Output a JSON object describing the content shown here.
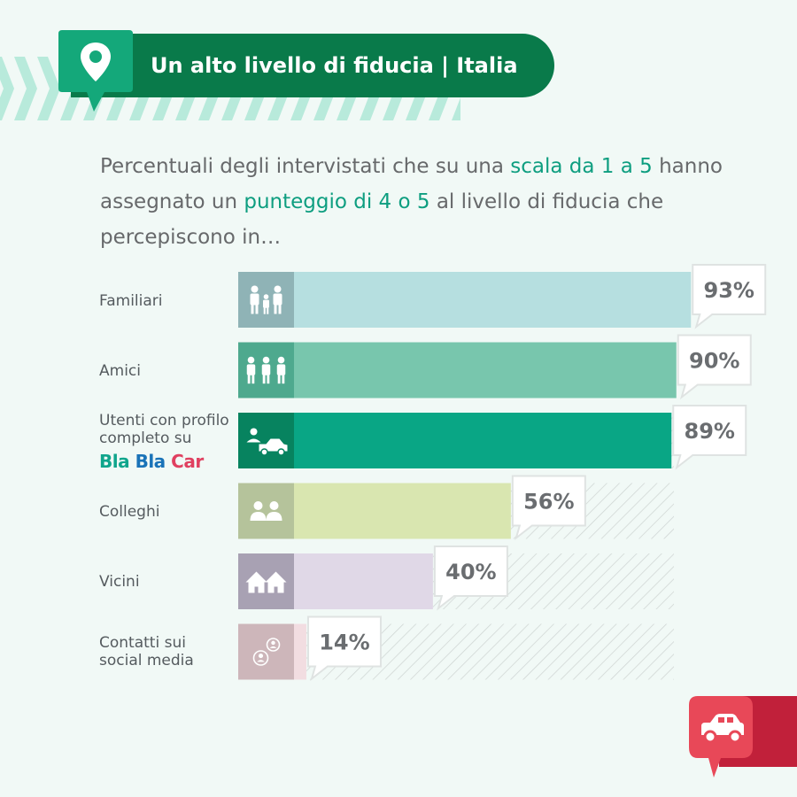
{
  "header": {
    "title": "Un alto livello di fiducia | Italia"
  },
  "intro": {
    "part1": "Percentuali degli intervistati che su una ",
    "hl1": "scala da 1 a 5",
    "part2": " hanno assegnato un ",
    "hl2": "punteggio di 4 o 5",
    "part3": " al livello di fiducia che percepiscono in…"
  },
  "brand": {
    "part1": "Bla",
    "part2": "Bla",
    "part3": "Car"
  },
  "chart_data": {
    "type": "bar",
    "orientation": "horizontal",
    "unit": "%",
    "xlim": [
      0,
      100
    ],
    "categories": [
      "Familiari",
      "Amici",
      "Utenti con profilo completo su",
      "Colleghi",
      "Vicini",
      "Contatti sui social media"
    ],
    "values": [
      93,
      90,
      89,
      56,
      40,
      14
    ],
    "value_labels": [
      "93%",
      "90%",
      "89%",
      "56%",
      "40%",
      "14%"
    ],
    "icons": [
      "family-icon",
      "friends-icon",
      "car-share-icon",
      "colleagues-icon",
      "neighbors-icon",
      "social-contacts-icon"
    ],
    "bar_colors": [
      "#b6dfe0",
      "#78c6ad",
      "#09a685",
      "#d9e6b0",
      "#e0d8e7",
      "#f2dde1"
    ],
    "icon_colors": [
      "#8fb3b6",
      "#4ea98e",
      "#07835f",
      "#b5c39b",
      "#a8a1b3",
      "#cdb6ba"
    ],
    "value_colors": [
      "#6a6d70",
      "#6a6d70",
      "#09a685",
      "#6a6d70",
      "#6a6d70",
      "#6a6d70"
    ]
  },
  "colors": {
    "background": "#f1f9f6",
    "banner": "#097a4a",
    "accent": "#0e9e80",
    "badge": "#e84858"
  }
}
